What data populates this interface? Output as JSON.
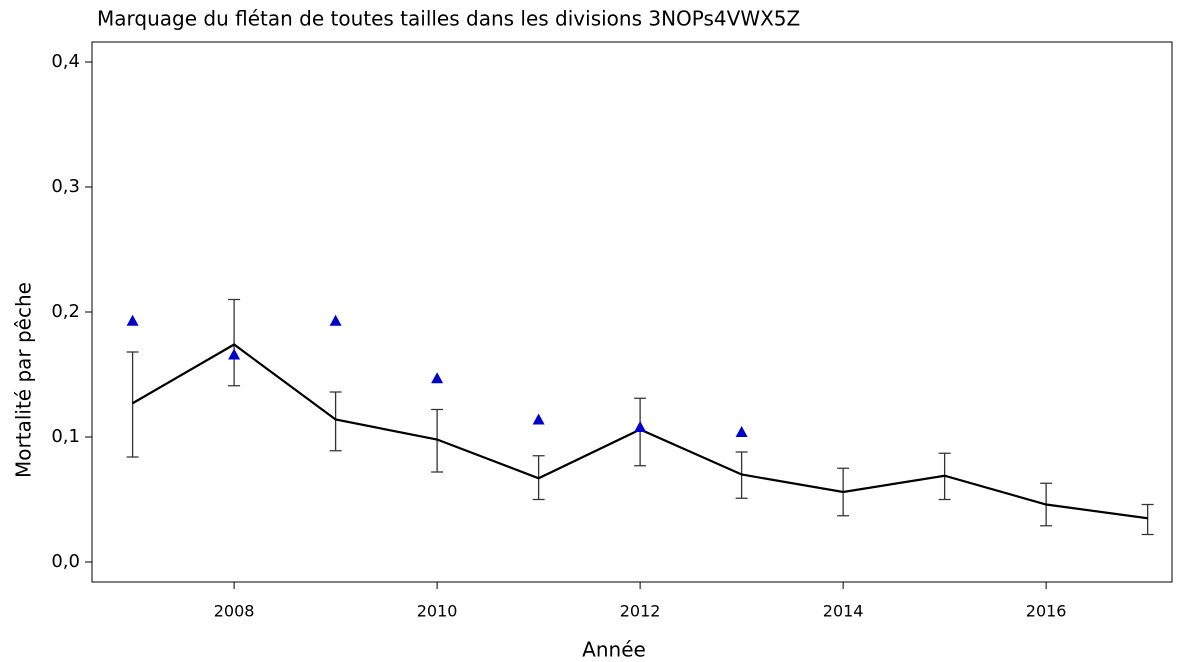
{
  "chart_data": {
    "type": "line",
    "title": "Marquage du flétan de toutes tailles dans les divisions 3NOPs4VWX5Z",
    "xlabel": "Année",
    "ylabel": "Mortalité par pêche",
    "x": [
      2007,
      2008,
      2009,
      2010,
      2011,
      2012,
      2013,
      2014,
      2015,
      2016,
      2017
    ],
    "series": [
      {
        "color": "#000000",
        "marker": "none",
        "values": [
          0.127,
          0.174,
          0.114,
          0.098,
          0.067,
          0.106,
          0.07,
          0.056,
          0.069,
          0.046,
          0.035
        ],
        "lower": [
          0.084,
          0.141,
          0.089,
          0.072,
          0.05,
          0.077,
          0.051,
          0.037,
          0.05,
          0.029,
          0.022
        ],
        "upper": [
          0.168,
          0.21,
          0.136,
          0.122,
          0.085,
          0.131,
          0.088,
          0.075,
          0.087,
          0.063,
          0.046
        ]
      },
      {
        "color": "#0000cc",
        "marker": "triangle",
        "values": [
          0.193,
          0.166,
          0.193,
          0.147,
          0.114,
          0.108,
          0.104,
          null,
          null,
          null,
          null
        ]
      }
    ],
    "xlim": [
      2006.6,
      2017.24
    ],
    "xticks": [
      2008,
      2010,
      2012,
      2014,
      2016
    ],
    "ylim": [
      -0.016,
      0.416
    ],
    "yticks": [
      {
        "value": 0,
        "label": "0,0"
      },
      {
        "value": 0.1,
        "label": "0,1"
      },
      {
        "value": 0.2,
        "label": "0,2"
      },
      {
        "value": 0.3,
        "label": "0,3"
      },
      {
        "value": 0.4,
        "label": "0,4"
      }
    ]
  }
}
